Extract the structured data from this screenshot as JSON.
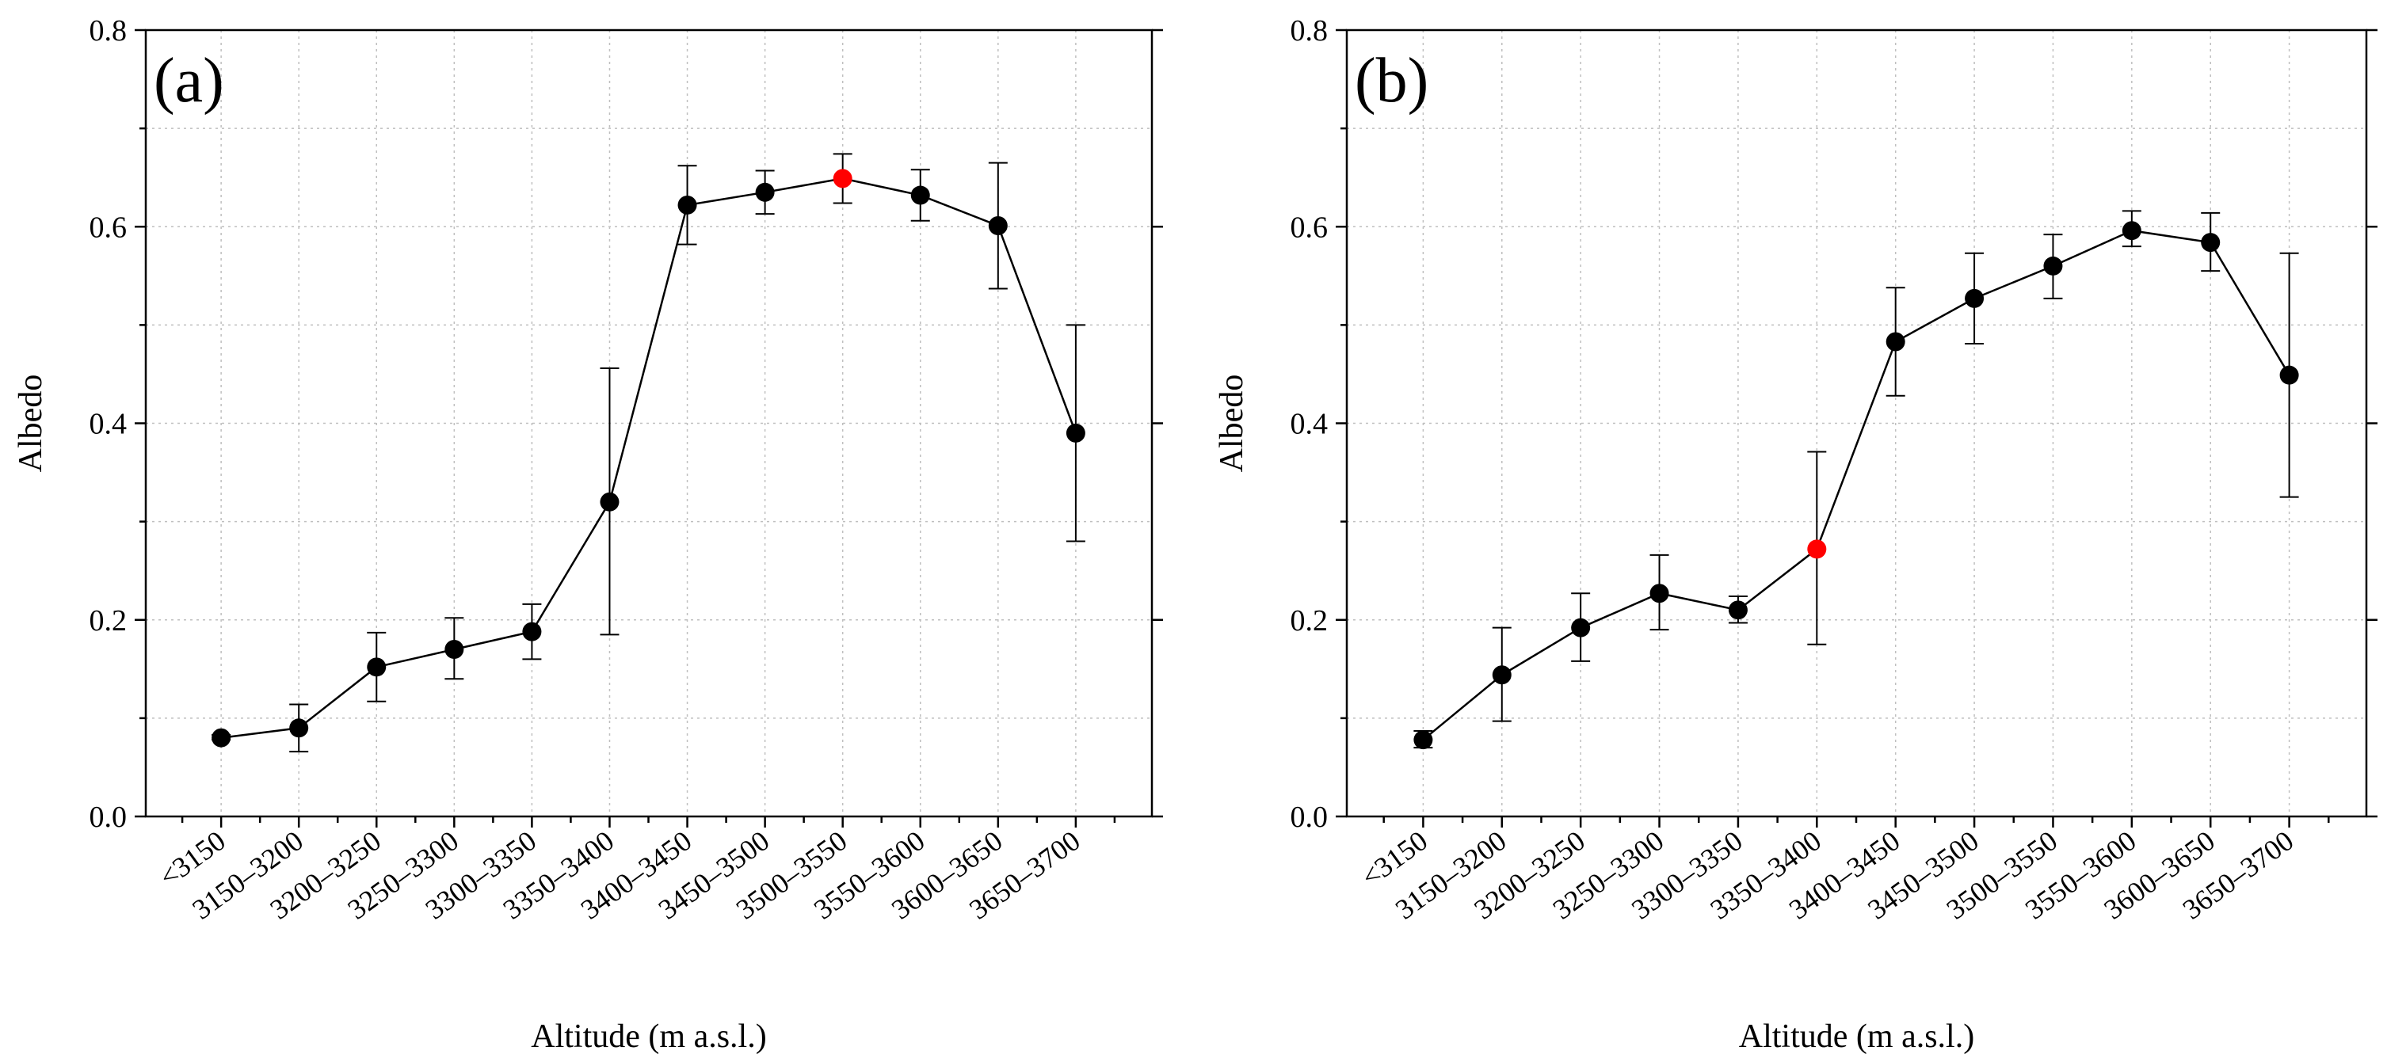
{
  "chart_data": [
    {
      "type": "line",
      "panel_label": "(a)",
      "xlabel": "Altitude (m a.s.l.)",
      "ylabel": "Albedo",
      "ylim": [
        0,
        0.8
      ],
      "yticks": [
        "0.0",
        "0.2",
        "0.4",
        "0.6",
        "0.8"
      ],
      "grid": true,
      "categories": [
        "<3150",
        "3150–3200",
        "3200–3250",
        "3250–3300",
        "3300–3350",
        "3350–3400",
        "3400–3450",
        "3450–3500",
        "3500–3550",
        "3550–3600",
        "3600–3650",
        "3650–3700"
      ],
      "series": [
        {
          "name": "Albedo",
          "values": [
            0.08,
            0.09,
            0.152,
            0.17,
            0.188,
            0.32,
            0.622,
            0.635,
            0.649,
            0.632,
            0.601,
            0.39
          ],
          "err_low": [
            0.078,
            0.066,
            0.117,
            0.14,
            0.16,
            0.185,
            0.582,
            0.613,
            0.624,
            0.606,
            0.537,
            0.28
          ],
          "err_high": [
            0.083,
            0.114,
            0.187,
            0.202,
            0.216,
            0.456,
            0.662,
            0.657,
            0.674,
            0.658,
            0.665,
            0.5
          ],
          "highlight_index": 8
        }
      ],
      "colors": {
        "marker": "#000000",
        "highlight": "#ff0000"
      }
    },
    {
      "type": "line",
      "panel_label": "(b)",
      "xlabel": "Altitude (m a.s.l.)",
      "ylabel": "Albedo",
      "ylim": [
        0,
        0.8
      ],
      "yticks": [
        "0.0",
        "0.2",
        "0.4",
        "0.6",
        "0.8"
      ],
      "grid": true,
      "categories": [
        "<3150",
        "3150–3200",
        "3200–3250",
        "3250–3300",
        "3300–3350",
        "3350–3400",
        "3400–3450",
        "3450–3500",
        "3500–3550",
        "3550–3600",
        "3600–3650",
        "3650–3700"
      ],
      "series": [
        {
          "name": "Albedo",
          "values": [
            0.078,
            0.144,
            0.192,
            0.227,
            0.21,
            0.272,
            0.483,
            0.527,
            0.56,
            0.596,
            0.584,
            0.449
          ],
          "err_low": [
            0.07,
            0.097,
            0.158,
            0.19,
            0.197,
            0.175,
            0.428,
            0.481,
            0.527,
            0.58,
            0.555,
            0.325
          ],
          "err_high": [
            0.087,
            0.192,
            0.227,
            0.266,
            0.224,
            0.371,
            0.538,
            0.573,
            0.592,
            0.616,
            0.614,
            0.573
          ],
          "highlight_index": 5
        }
      ],
      "colors": {
        "marker": "#000000",
        "highlight": "#ff0000"
      }
    }
  ]
}
